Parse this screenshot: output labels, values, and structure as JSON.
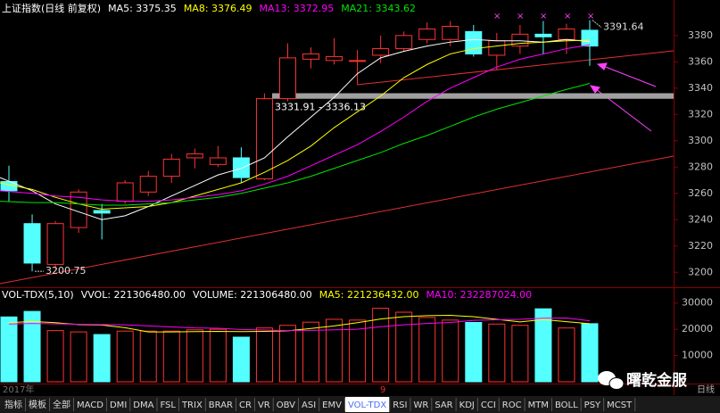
{
  "chart_data": [
    {
      "type": "candlestick",
      "title": "上证指数(日线 前复权)",
      "open": [
        3269,
        3237,
        3206,
        3234,
        3247,
        3254,
        3261,
        3273,
        3287,
        3282,
        3287,
        3271,
        3332,
        3362,
        3361,
        3361,
        3365,
        3370,
        3377,
        3377,
        3383,
        3365,
        3372,
        3381,
        3377,
        3384
      ],
      "high": [
        3281,
        3244,
        3239,
        3263,
        3252,
        3270,
        3277,
        3290,
        3294,
        3296,
        3295,
        3336,
        3374,
        3371,
        3378,
        3369,
        3380,
        3383,
        3390,
        3391,
        3388,
        3382,
        3388,
        3391,
        3389,
        3391.64
      ],
      "low": [
        3254,
        3200.75,
        3202,
        3230,
        3225,
        3252,
        3258,
        3268,
        3279,
        3280,
        3268,
        3270,
        3330,
        3355,
        3358,
        3343,
        3359,
        3368,
        3374,
        3372,
        3364,
        3354,
        3366,
        3366,
        3366,
        3357
      ],
      "close": [
        3262,
        3207,
        3237,
        3261,
        3245,
        3268,
        3273,
        3286,
        3290,
        3287,
        3272,
        3332,
        3363,
        3366,
        3364,
        3361,
        3370,
        3380,
        3385,
        3387,
        3366,
        3376,
        3381,
        3379,
        3385,
        3372
      ],
      "up_color": "#ff3232",
      "down_color": "#54ffff",
      "series": [
        {
          "name": "MA5: 3375.35",
          "color": "#ffffff",
          "values": [
            3272,
            3262,
            3252,
            3246,
            3240,
            3243,
            3250,
            3258,
            3266,
            3274,
            3279,
            3287,
            3303,
            3318,
            3333,
            3351,
            3363,
            3368,
            3372,
            3375,
            3377,
            3376,
            3376,
            3375,
            3377,
            3375.35
          ]
        },
        {
          "name": "MA8: 3376.49",
          "color": "#ffff00",
          "values": [
            3268,
            3263,
            3257,
            3252,
            3248,
            3249,
            3250,
            3253,
            3258,
            3263,
            3268,
            3276,
            3285,
            3296,
            3310,
            3322,
            3334,
            3348,
            3358,
            3366,
            3370,
            3372,
            3374,
            3375,
            3376,
            3376.49
          ]
        },
        {
          "name": "MA13: 3372.95",
          "color": "#ff00ff",
          "values": [
            3262,
            3260,
            3258,
            3257,
            3255,
            3254,
            3254,
            3255,
            3257,
            3259,
            3262,
            3267,
            3273,
            3281,
            3289,
            3297,
            3307,
            3318,
            3330,
            3340,
            3348,
            3356,
            3362,
            3366,
            3370,
            3372.95
          ]
        },
        {
          "name": "MA21: 3343.62",
          "color": "#00e600",
          "values": [
            3254,
            3253,
            3253,
            3252,
            3251,
            3251,
            3252,
            3253,
            3255,
            3257,
            3260,
            3264,
            3268,
            3273,
            3279,
            3285,
            3291,
            3298,
            3304,
            3311,
            3318,
            3324,
            3329,
            3334,
            3339,
            3343.62
          ]
        }
      ],
      "annotations": [
        {
          "text": "3391.64",
          "value": 3391.64
        },
        {
          "text": "3200.75",
          "value": 3200.75
        }
      ],
      "zone": {
        "low": 3331.91,
        "high": 3336.13,
        "label": "3331.91 - 3336.13"
      },
      "ylim": [
        3190,
        3407
      ],
      "yticks": [
        3200,
        3220,
        3240,
        3260,
        3280,
        3300,
        3320,
        3340,
        3360,
        3380
      ]
    },
    {
      "type": "volume",
      "title": "VOL-TDX(5,10)",
      "header": [
        "VVOL: 221306480.00",
        "VOLUME: 221306480.00"
      ],
      "values": [
        24700,
        26800,
        19500,
        19000,
        18000,
        19300,
        19300,
        19300,
        19800,
        20000,
        17000,
        20500,
        21500,
        22700,
        23800,
        23500,
        28000,
        26500,
        24500,
        23500,
        22600,
        22000,
        21500,
        27800,
        20500,
        22130.648
      ],
      "up_color": "#ff3232",
      "down_color": "#54ffff",
      "series": [
        {
          "name": "MA5: 221236432.00",
          "color": "#ffff00",
          "values": [
            22500,
            23000,
            22500,
            21800,
            21600,
            20600,
            19000,
            19000,
            19100,
            19200,
            19100,
            19200,
            19400,
            20300,
            21300,
            22500,
            23900,
            24800,
            25200,
            25300,
            24800,
            23800,
            22800,
            23700,
            22900,
            22123.6432
          ]
        },
        {
          "name": "MA10: 232287024.00",
          "color": "#ff00ff",
          "values": [
            22000,
            22200,
            22100,
            21900,
            21800,
            21700,
            21300,
            20900,
            20500,
            20400,
            19900,
            19700,
            19500,
            19600,
            19800,
            20000,
            21000,
            21700,
            22200,
            22600,
            23400,
            23600,
            23800,
            24200,
            24300,
            23228.7024
          ]
        }
      ],
      "ylim": [
        0,
        35000
      ],
      "yticks": [
        10000,
        20000,
        30000
      ]
    }
  ],
  "x_labels": [
    "2017年",
    "9"
  ],
  "period": "日线",
  "watermark": "曙乾金服",
  "toolbar": {
    "items": [
      "指标",
      "模板",
      "全部",
      "MACD",
      "DMI",
      "DMA",
      "FSL",
      "TRIX",
      "BRAR",
      "CR",
      "VR",
      "OBV",
      "ASI",
      "EMV",
      "VOL-TDX",
      "RSI",
      "WR",
      "SAR",
      "KDJ",
      "CCI",
      "ROC",
      "MTM",
      "BOLL",
      "PSY",
      "MCST"
    ],
    "active": "VOL-TDX"
  }
}
